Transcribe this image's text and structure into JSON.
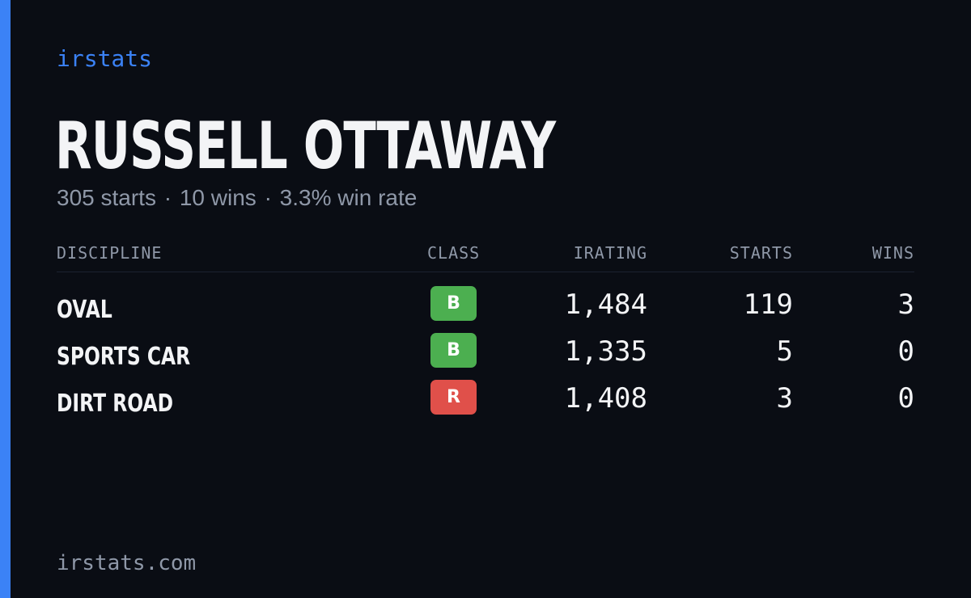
{
  "brand": "irstats",
  "driver": {
    "name": "RUSSELL OTTAWAY"
  },
  "summary": {
    "starts": "305 starts",
    "wins": "10 wins",
    "win_rate": "3.3% win rate",
    "separator": "·"
  },
  "table": {
    "headers": {
      "discipline": "DISCIPLINE",
      "class": "CLASS",
      "irating": "IRATING",
      "starts": "STARTS",
      "wins": "WINS"
    },
    "rows": [
      {
        "discipline": "OVAL",
        "class": "B",
        "class_color": "#4caf50",
        "irating": "1,484",
        "starts": "119",
        "wins": "3"
      },
      {
        "discipline": "SPORTS CAR",
        "class": "B",
        "class_color": "#4caf50",
        "irating": "1,335",
        "starts": "5",
        "wins": "0"
      },
      {
        "discipline": "DIRT ROAD",
        "class": "R",
        "class_color": "#e0504a",
        "irating": "1,408",
        "starts": "3",
        "wins": "0"
      }
    ]
  },
  "footer": {
    "site": "irstats.com"
  },
  "colors": {
    "background": "#0a0d14",
    "accent": "#3b82f6",
    "text": "#f3f4f6",
    "muted": "#8f98a8"
  }
}
